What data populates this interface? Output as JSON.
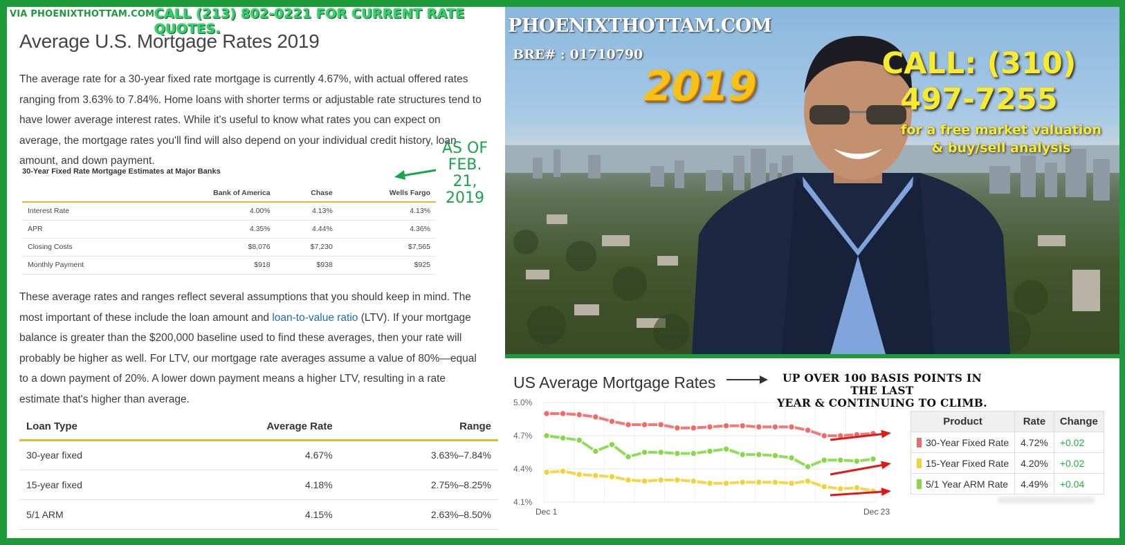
{
  "left": {
    "via_label": "VIA PHOENIXTHOTTAM.COM",
    "call_banner": "CALL (213) 802-0221 FOR CURRENT RATE QUOTES.",
    "title": "Average U.S. Mortgage Rates 2019",
    "paragraph1": "The average rate for a 30-year fixed rate mortgage is currently 4.67%, with actual offered rates ranging from 3.63% to 7.84%. Home loans with shorter terms or adjustable rate structures tend to have lower average interest rates. While it's useful to know what rates you can expect on average, the mortgage rates you'll find will also depend on your individual credit history, loan amount, and down payment.",
    "as_of_lines": [
      "AS OF",
      "FEB.",
      "21,",
      "2019"
    ],
    "banks_caption": "30-Year Fixed Rate Mortgage Estimates at Major Banks",
    "banks_headers": [
      "",
      "Bank of America",
      "Chase",
      "Wells Fargo"
    ],
    "banks_rows": [
      [
        "Interest Rate",
        "4.00%",
        "4.13%",
        "4.13%"
      ],
      [
        "APR",
        "4.35%",
        "4.44%",
        "4.36%"
      ],
      [
        "Closing Costs",
        "$8,076",
        "$7,230",
        "$7,565"
      ],
      [
        "Monthly Payment",
        "$918",
        "$938",
        "$925"
      ]
    ],
    "paragraph2_a": "These average rates and ranges reflect several assumptions that you should keep in mind. The most important of these include the loan amount and ",
    "paragraph2_link": "loan-to-value ratio",
    "paragraph2_b": " (LTV). If your mortgage balance is greater than the $200,000 baseline used to find these averages, then your rate will probably be higher as well. For LTV, our mortgage rate averages assume a value of 80%—equal to a down payment of 20%. A lower down payment means a higher LTV, resulting in a rate estimate that's higher than average.",
    "loan_headers": [
      "Loan Type",
      "Average Rate",
      "Range"
    ],
    "loan_rows": [
      [
        "30-year fixed",
        "4.67%",
        "3.63%–7.84%"
      ],
      [
        "15-year fixed",
        "4.18%",
        "2.75%–8.25%"
      ],
      [
        "5/1 ARM",
        "4.15%",
        "2.63%–8.50%"
      ]
    ]
  },
  "photo": {
    "site": "PHOENIXTHOTTAM.COM",
    "bre": "BRE# : 01710790",
    "year": "2019",
    "call_line1": "CALL:  (310)",
    "call_line2": "497-7255",
    "tagline_line1": "for a free market valuation",
    "tagline_line2": "& buy/sell analysis"
  },
  "chart_panel": {
    "title": "US Average Mortgage Rates",
    "note_line1": "UP OVER 100 BASIS POINTS IN THE LAST",
    "note_line2": "YEAR & CONTINUING TO CLIMB.",
    "table_headers": [
      "Product",
      "Rate",
      "Change"
    ],
    "table_rows": [
      {
        "product": "30-Year Fixed Rate",
        "rate": "4.72%",
        "change": "+0.02",
        "color": "#f06a6a"
      },
      {
        "product": "15-Year Fixed Rate",
        "rate": "4.20%",
        "change": "+0.02",
        "color": "#f2d23a"
      },
      {
        "product": "5/1 Year ARM Rate",
        "rate": "4.49%",
        "change": "+0.04",
        "color": "#86d84a"
      }
    ]
  },
  "chart_data": {
    "type": "line",
    "title": "US Average Mortgage Rates",
    "x_start_label": "Dec 1",
    "x_end_label": "Dec 23",
    "y_ticks": [
      "5.0%",
      "4.7%",
      "4.4%",
      "4.1%"
    ],
    "ylim": [
      4.1,
      5.0
    ],
    "grid": true,
    "series": [
      {
        "name": "30-Year Fixed Rate",
        "color": "#f06a6a",
        "values": [
          4.9,
          4.9,
          4.89,
          4.87,
          4.83,
          4.8,
          4.8,
          4.8,
          4.77,
          4.77,
          4.78,
          4.79,
          4.79,
          4.78,
          4.78,
          4.78,
          4.75,
          4.7,
          4.7,
          4.71,
          4.72
        ]
      },
      {
        "name": "15-Year Fixed Rate",
        "color": "#f2d23a",
        "values": [
          4.37,
          4.38,
          4.35,
          4.34,
          4.33,
          4.3,
          4.29,
          4.3,
          4.3,
          4.29,
          4.27,
          4.27,
          4.28,
          4.28,
          4.28,
          4.27,
          4.29,
          4.24,
          4.22,
          4.23,
          4.2
        ]
      },
      {
        "name": "5/1 Year ARM Rate",
        "color": "#86d84a",
        "values": [
          4.7,
          4.68,
          4.66,
          4.56,
          4.62,
          4.51,
          4.55,
          4.55,
          4.54,
          4.54,
          4.56,
          4.58,
          4.53,
          4.53,
          4.52,
          4.5,
          4.42,
          4.48,
          4.48,
          4.47,
          4.49
        ]
      }
    ]
  },
  "colors": {
    "frame_green": "#1f9a3a",
    "accent_gold": "#f0b530",
    "link_blue": "#1a6bb3",
    "arrow_red": "#e01818"
  }
}
